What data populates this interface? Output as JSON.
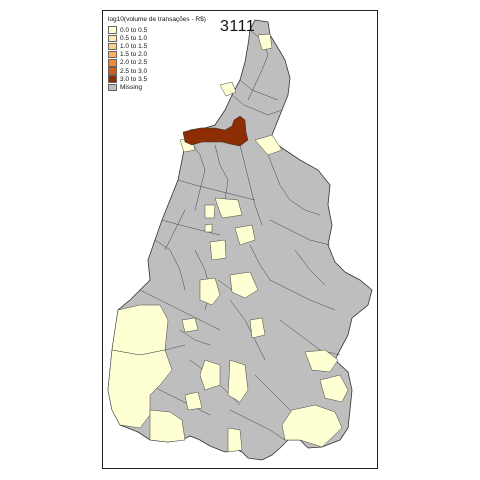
{
  "map": {
    "title": "3111",
    "legend_title": "log10(volume de transações - R$)",
    "legend_items": [
      {
        "label": "0.0 to 0.5",
        "color": "#FFFFD4"
      },
      {
        "label": "0.5 to 1.0",
        "color": "#FEE9AE"
      },
      {
        "label": "1.0 to 1.5",
        "color": "#FED18A"
      },
      {
        "label": "1.5 to 2.0",
        "color": "#FEB261"
      },
      {
        "label": "2.0 to 2.5",
        "color": "#F9882D"
      },
      {
        "label": "2.5 to 3.0",
        "color": "#D4600F"
      },
      {
        "label": "3.0 to 3.5",
        "color": "#8C2D04"
      },
      {
        "label": "Missing",
        "color": "#BEBEBE"
      }
    ],
    "colors": {
      "missing": "#BEBEBE",
      "low": "#FFFFD4",
      "high": "#8C2D04",
      "border": "#333333"
    }
  }
}
